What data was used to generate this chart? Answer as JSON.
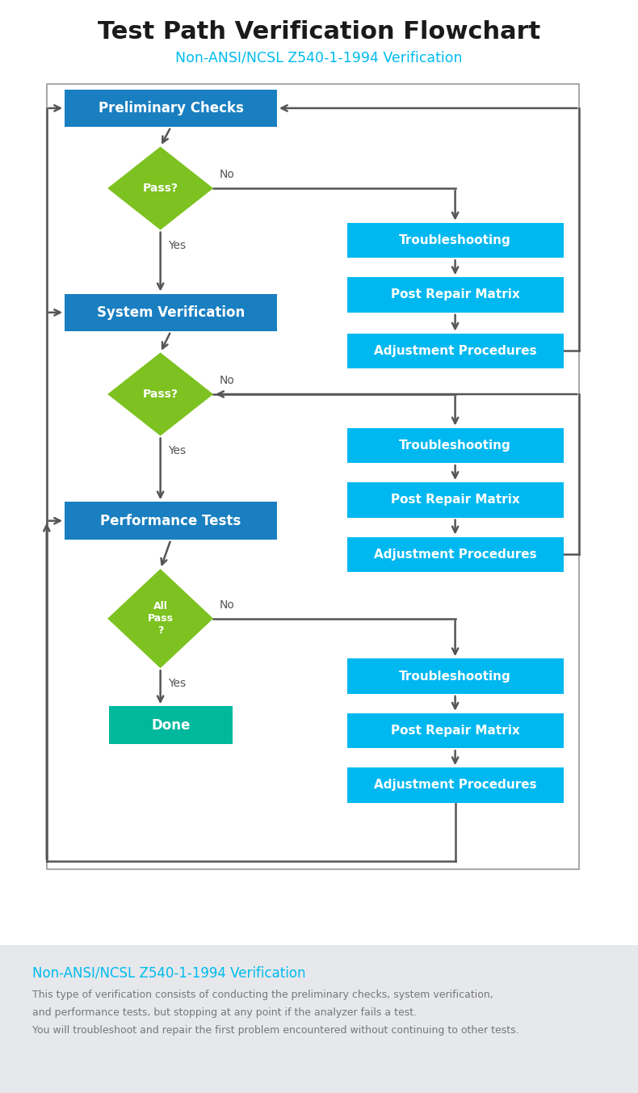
{
  "title": "Test Path Verification Flowchart",
  "subtitle": "Non-ANSI/NCSL Z540-1-1994 Verification",
  "title_color": "#1a1a1a",
  "subtitle_color": "#00bbee",
  "bg_color": "#ffffff",
  "footer_bg": "#e6e8eb",
  "blue_dark": "#1a7fc1",
  "blue_light": "#00b8f0",
  "green_diamond": "#7dc220",
  "teal_done": "#00b89c",
  "line_color": "#555555",
  "footer_title_color": "#00bbee",
  "footer_text_color": "#777777",
  "footer_title": "Non-ANSI/NCSL Z540-1-1994 Verification",
  "footer_lines": [
    "This type of verification consists of conducting the preliminary checks, system verification,",
    "and performance tests, but stopping at any point if the analyzer fails a test.",
    "You will troubleshoot and repair the first problem encountered without continuing to other tests."
  ]
}
